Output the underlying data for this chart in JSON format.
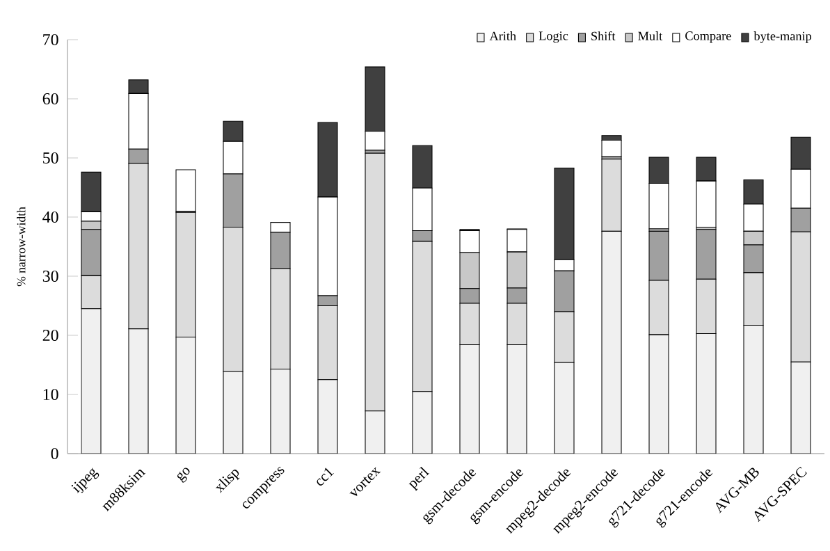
{
  "chart_data": {
    "type": "bar",
    "stacked": true,
    "ylabel": "% narrow-width",
    "categories": [
      "ijpeg",
      "m88ksim",
      "go",
      "xlisp",
      "compress",
      "cc1",
      "vortex",
      "perl",
      "gsm-decode",
      "gsm-encode",
      "mpeg2-decode",
      "mpeg2-encode",
      "g721-decode",
      "g721-encode",
      "AVG-MB",
      "AVG-SPEC"
    ],
    "series": [
      {
        "name": "Arith",
        "color": "#f0f0f0",
        "values": [
          24.5,
          21.1,
          19.7,
          13.9,
          14.3,
          12.5,
          7.2,
          10.5,
          18.4,
          18.4,
          15.4,
          37.6,
          20.1,
          20.3,
          21.7,
          15.5
        ]
      },
      {
        "name": "Logic",
        "color": "#dcdcdc",
        "values": [
          5.6,
          28.0,
          21.1,
          24.4,
          17.0,
          12.5,
          43.6,
          25.4,
          7.0,
          7.0,
          8.6,
          12.2,
          9.2,
          9.2,
          8.9,
          22.0
        ]
      },
      {
        "name": "Shift",
        "color": "#a0a0a0",
        "values": [
          7.8,
          2.4,
          0.2,
          9.0,
          6.1,
          1.7,
          0.5,
          1.8,
          2.5,
          2.6,
          6.9,
          0.4,
          8.3,
          8.4,
          4.7,
          4.0
        ]
      },
      {
        "name": "Mult",
        "color": "#c8c8c8",
        "values": [
          1.4,
          0,
          0,
          0,
          0,
          0,
          0,
          0,
          6.1,
          6.1,
          0,
          0,
          0.4,
          0.4,
          2.3,
          0
        ]
      },
      {
        "name": "Compare",
        "color": "#ffffff",
        "values": [
          1.6,
          9.4,
          7.0,
          5.5,
          1.7,
          16.7,
          3.2,
          7.2,
          3.7,
          3.8,
          1.9,
          2.8,
          7.7,
          7.8,
          4.6,
          6.6
        ]
      },
      {
        "name": "byte-manip",
        "color": "#404040",
        "values": [
          6.7,
          2.3,
          0,
          3.4,
          0,
          12.6,
          10.9,
          7.2,
          0.2,
          0.1,
          15.5,
          0.8,
          4.4,
          4.0,
          4.1,
          5.4
        ]
      }
    ],
    "ylim": [
      0,
      70
    ],
    "yticks": [
      0,
      10,
      20,
      30,
      40,
      50,
      60,
      70
    ],
    "legend": "top right"
  }
}
